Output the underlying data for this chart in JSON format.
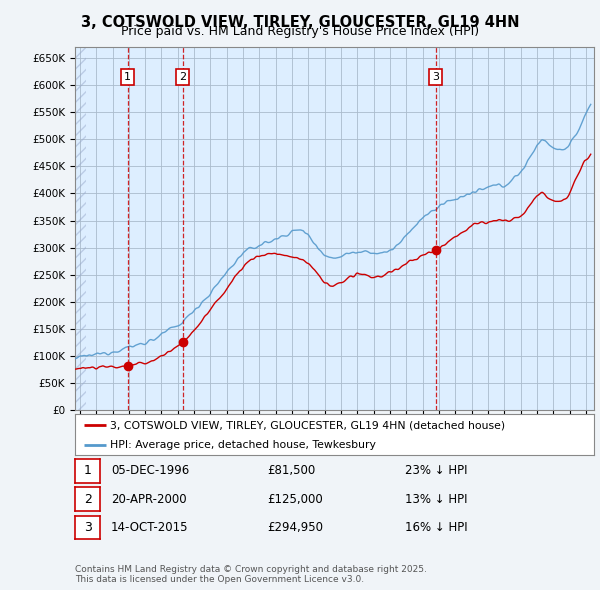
{
  "title": "3, COTSWOLD VIEW, TIRLEY, GLOUCESTER, GL19 4HN",
  "subtitle": "Price paid vs. HM Land Registry's House Price Index (HPI)",
  "ylim": [
    0,
    670000
  ],
  "yticks": [
    0,
    50000,
    100000,
    150000,
    200000,
    250000,
    300000,
    350000,
    400000,
    450000,
    500000,
    550000,
    600000,
    650000
  ],
  "xlim_start": 1993.7,
  "xlim_end": 2025.5,
  "bg_color": "#f0f4f8",
  "plot_bg_color": "#ddeeff",
  "grid_color": "#aabbcc",
  "hpi_color": "#5599cc",
  "price_color": "#cc0000",
  "vline_color": "#cc0000",
  "sale_points": [
    {
      "year": 1996.92,
      "price": 81500,
      "label": "1"
    },
    {
      "year": 2000.3,
      "price": 125000,
      "label": "2"
    },
    {
      "year": 2015.8,
      "price": 294950,
      "label": "3"
    }
  ],
  "legend_entries": [
    {
      "label": "3, COTSWOLD VIEW, TIRLEY, GLOUCESTER, GL19 4HN (detached house)",
      "color": "#cc0000",
      "lw": 1.5
    },
    {
      "label": "HPI: Average price, detached house, Tewkesbury",
      "color": "#5599cc",
      "lw": 1.5
    }
  ],
  "table_rows": [
    {
      "num": "1",
      "date": "05-DEC-1996",
      "price": "£81,500",
      "note": "23% ↓ HPI"
    },
    {
      "num": "2",
      "date": "20-APR-2000",
      "price": "£125,000",
      "note": "13% ↓ HPI"
    },
    {
      "num": "3",
      "date": "14-OCT-2015",
      "price": "£294,950",
      "note": "16% ↓ HPI"
    }
  ],
  "footer": "Contains HM Land Registry data © Crown copyright and database right 2025.\nThis data is licensed under the Open Government Licence v3.0.",
  "title_fontsize": 10.5,
  "subtitle_fontsize": 9,
  "tick_fontsize": 7.5,
  "legend_fontsize": 8
}
